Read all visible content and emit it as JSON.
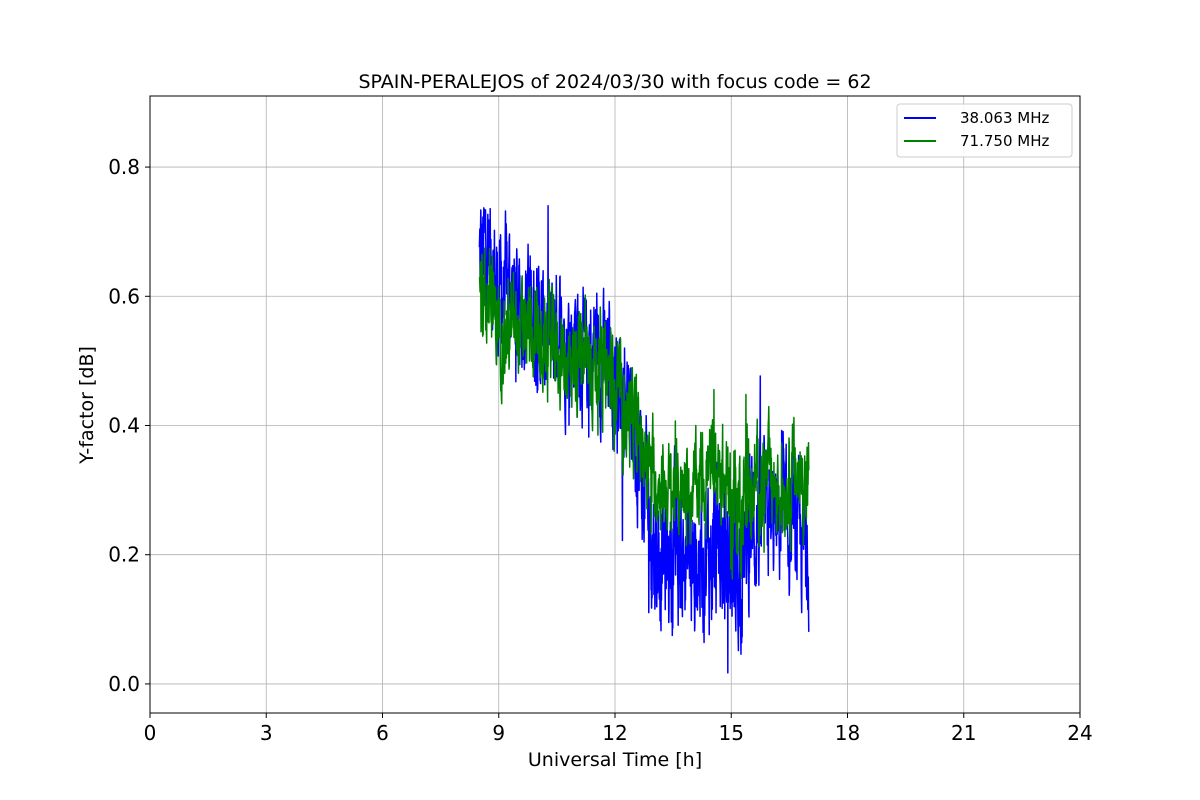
{
  "chart_data": {
    "type": "line",
    "title": "SPAIN-PERALEJOS of 2024/03/30 with focus code = 62",
    "xlabel": "Universal Time [h]",
    "ylabel": "Y-factor [dB]",
    "xlim": [
      0,
      24
    ],
    "ylim": [
      -0.045,
      0.91
    ],
    "xticks": [
      0,
      3,
      6,
      9,
      12,
      15,
      18,
      21,
      24
    ],
    "xtick_labels": [
      "0",
      "3",
      "6",
      "9",
      "12",
      "15",
      "18",
      "21",
      "24"
    ],
    "yticks": [
      0.0,
      0.2,
      0.4,
      0.6,
      0.8
    ],
    "ytick_labels": [
      "0.0",
      "0.2",
      "0.4",
      "0.6",
      "0.8"
    ],
    "grid": true,
    "legend_position": "top-right",
    "series": [
      {
        "name": "38.063 MHz",
        "color": "#0000ff",
        "x": [
          8.5,
          8.75,
          9.0,
          9.25,
          9.5,
          9.75,
          10.0,
          10.25,
          10.5,
          10.75,
          11.0,
          11.25,
          11.5,
          11.75,
          12.0,
          12.25,
          12.5,
          12.75,
          13.0,
          13.25,
          13.5,
          13.75,
          14.0,
          14.25,
          14.5,
          14.75,
          15.0,
          15.25,
          15.5,
          15.75,
          16.0,
          16.25,
          16.5,
          16.75,
          17.0
        ],
        "y": [
          0.65,
          0.68,
          0.6,
          0.62,
          0.58,
          0.6,
          0.56,
          0.52,
          0.55,
          0.53,
          0.55,
          0.5,
          0.52,
          0.5,
          0.48,
          0.44,
          0.4,
          0.3,
          0.22,
          0.2,
          0.2,
          0.2,
          0.18,
          0.2,
          0.2,
          0.2,
          0.18,
          0.18,
          0.25,
          0.25,
          0.25,
          0.25,
          0.24,
          0.22,
          0.2
        ],
        "spread": [
          0.12,
          0.1,
          0.1,
          0.1,
          0.1,
          0.1,
          0.1,
          0.1,
          0.1,
          0.1,
          0.1,
          0.1,
          0.1,
          0.1,
          0.1,
          0.1,
          0.1,
          0.12,
          0.12,
          0.12,
          0.12,
          0.12,
          0.12,
          0.12,
          0.12,
          0.12,
          0.12,
          0.12,
          0.12,
          0.12,
          0.1,
          0.1,
          0.1,
          0.1,
          0.1
        ]
      },
      {
        "name": "71.750 MHz",
        "color": "#008000",
        "x": [
          8.5,
          8.75,
          9.0,
          9.25,
          9.5,
          9.75,
          10.0,
          10.25,
          10.5,
          10.75,
          11.0,
          11.25,
          11.5,
          11.75,
          12.0,
          12.25,
          12.5,
          12.75,
          13.0,
          13.25,
          13.5,
          13.75,
          14.0,
          14.25,
          14.5,
          14.75,
          15.0,
          15.25,
          15.5,
          15.75,
          16.0,
          16.25,
          16.5,
          16.75,
          17.0
        ],
        "y": [
          0.6,
          0.6,
          0.55,
          0.55,
          0.54,
          0.54,
          0.52,
          0.52,
          0.52,
          0.5,
          0.5,
          0.5,
          0.5,
          0.48,
          0.46,
          0.42,
          0.4,
          0.36,
          0.32,
          0.3,
          0.3,
          0.3,
          0.3,
          0.32,
          0.33,
          0.32,
          0.28,
          0.28,
          0.3,
          0.32,
          0.32,
          0.3,
          0.32,
          0.32,
          0.3
        ],
        "spread": [
          0.1,
          0.08,
          0.08,
          0.08,
          0.08,
          0.08,
          0.08,
          0.08,
          0.08,
          0.08,
          0.08,
          0.08,
          0.08,
          0.08,
          0.08,
          0.08,
          0.08,
          0.07,
          0.07,
          0.07,
          0.07,
          0.07,
          0.07,
          0.08,
          0.08,
          0.08,
          0.1,
          0.1,
          0.08,
          0.08,
          0.08,
          0.08,
          0.08,
          0.08,
          0.08
        ]
      }
    ]
  }
}
